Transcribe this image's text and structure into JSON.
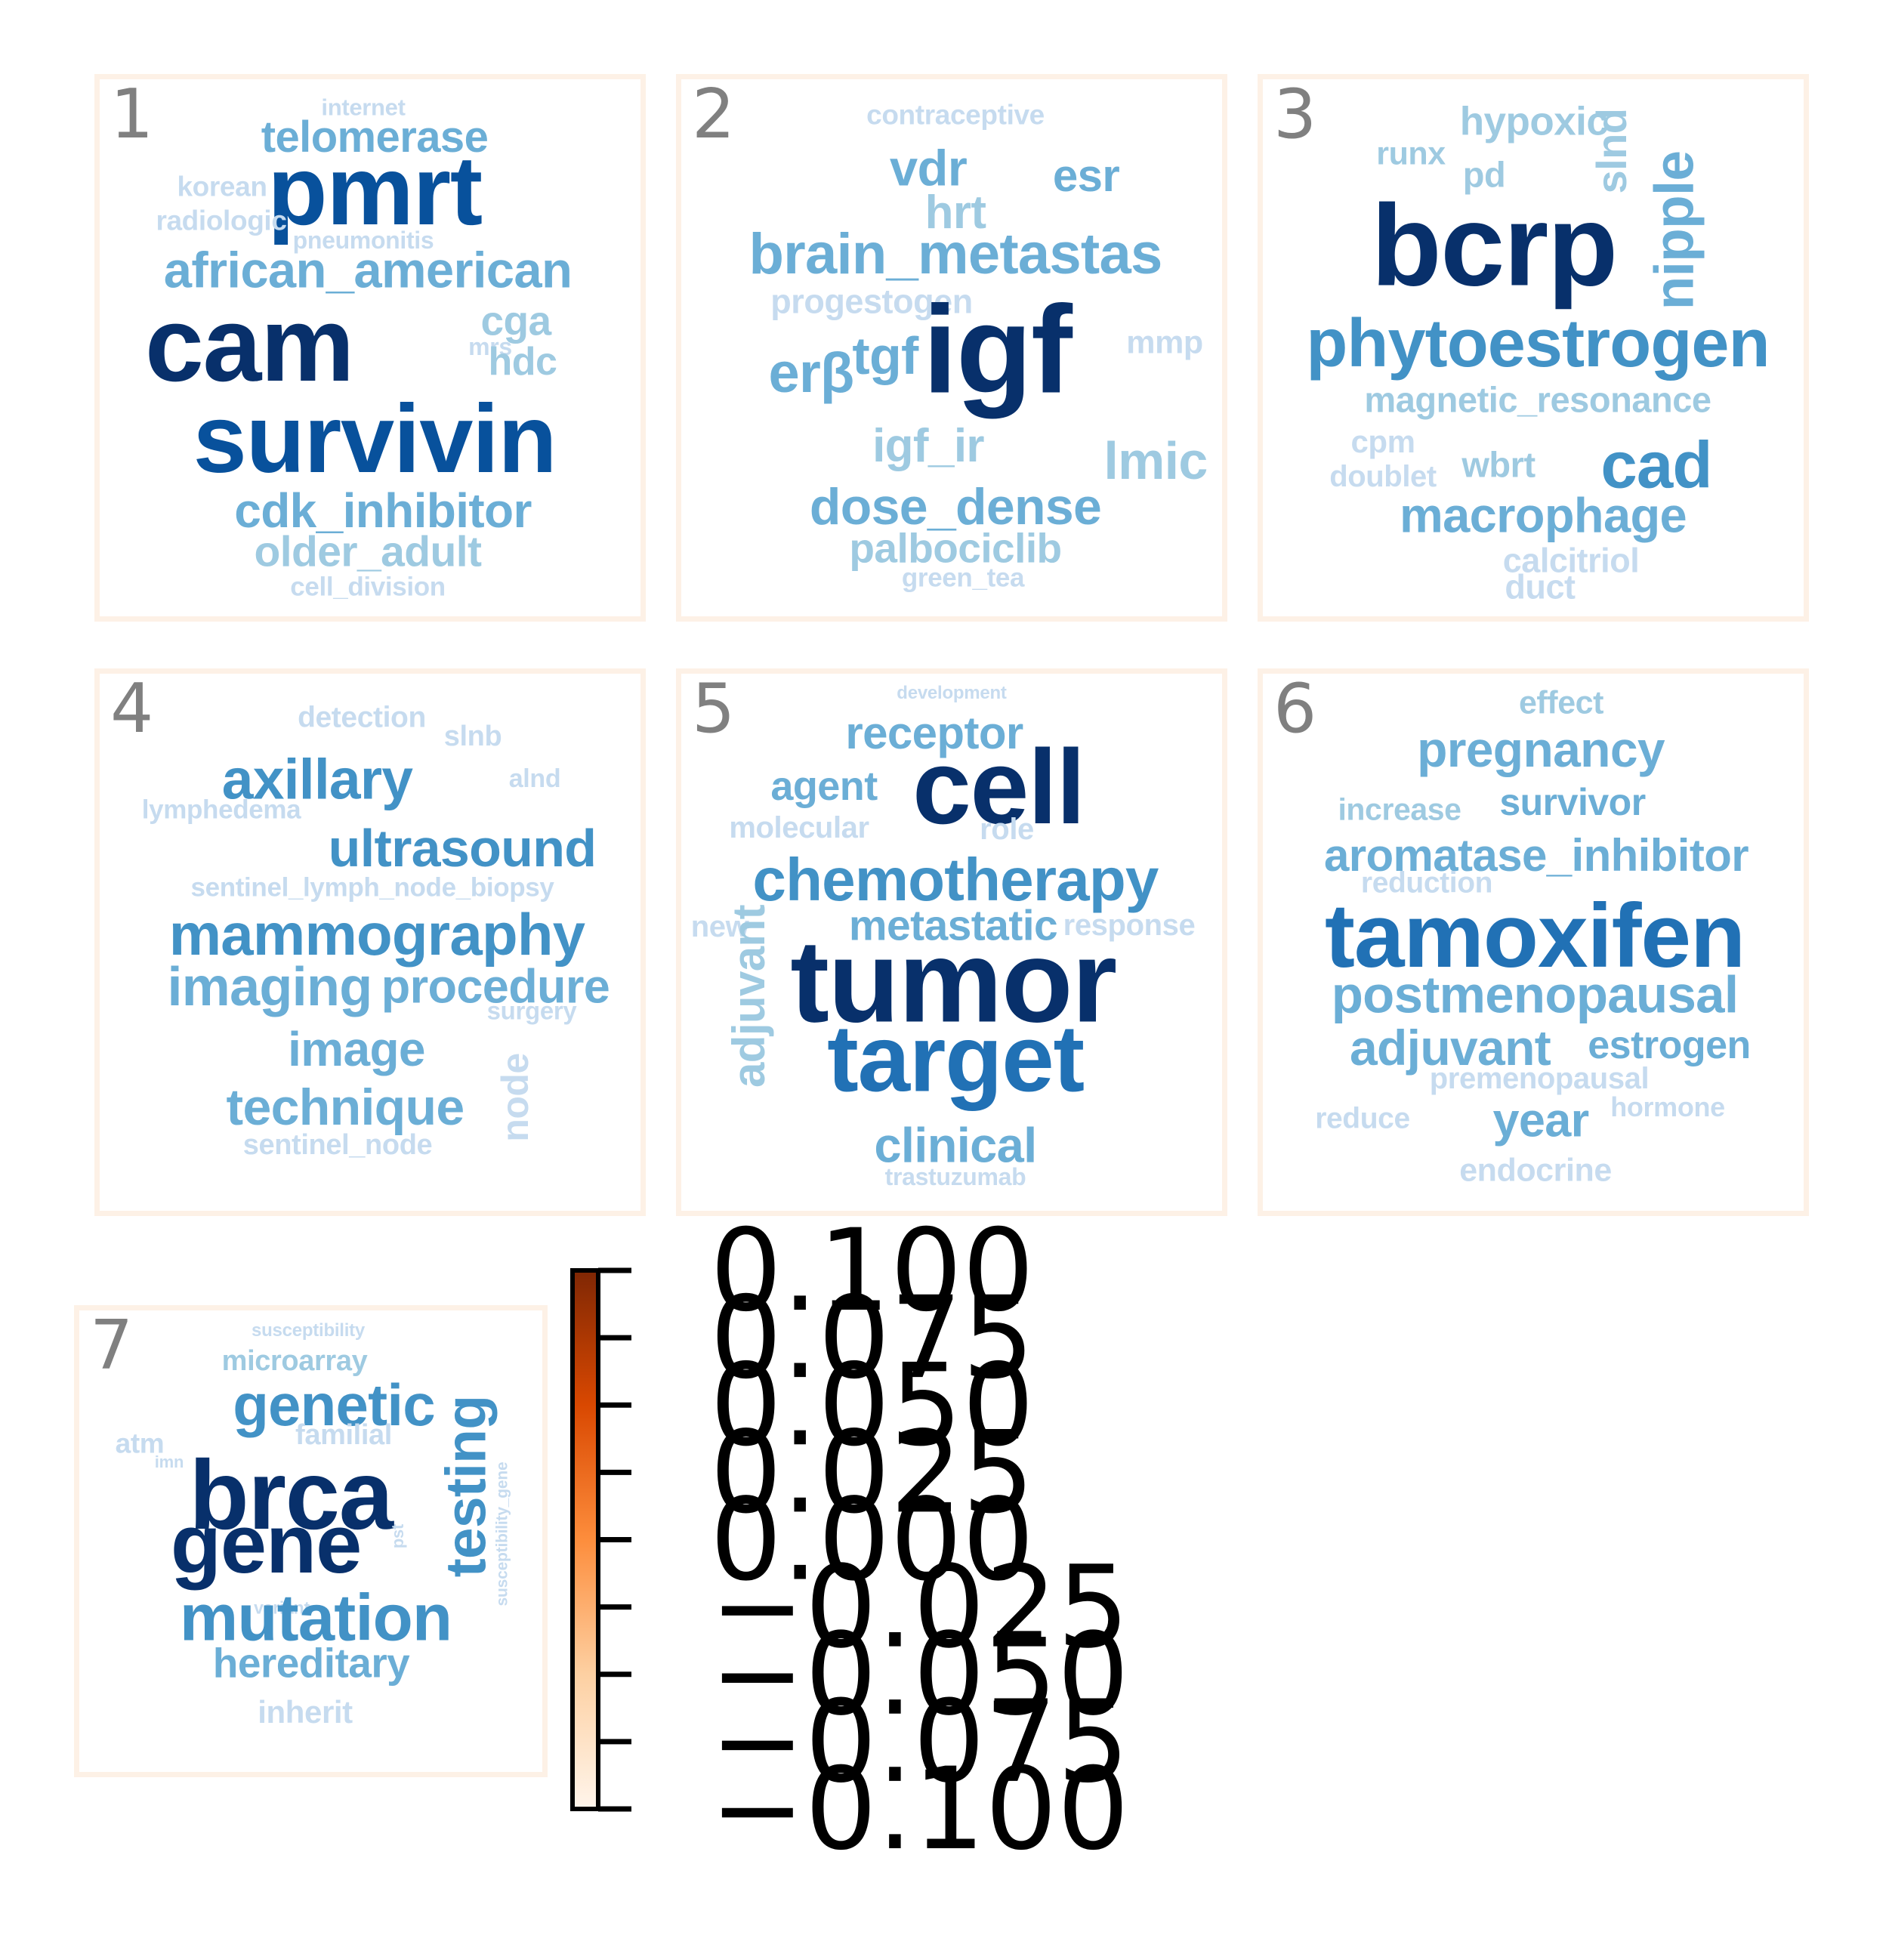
{
  "chart_data": {
    "type": "wordcloud",
    "panels": [
      {
        "number": "1",
        "words": [
          {
            "text": "internet",
            "weight": 0.15
          },
          {
            "text": "telomerase",
            "weight": 0.45
          },
          {
            "text": "korean",
            "weight": 0.2
          },
          {
            "text": "pmrt",
            "weight": 0.85
          },
          {
            "text": "radiologic",
            "weight": 0.2
          },
          {
            "text": "pneumonitis",
            "weight": 0.15
          },
          {
            "text": "african_american",
            "weight": 0.5
          },
          {
            "text": "cga",
            "weight": 0.3
          },
          {
            "text": "cam",
            "weight": 1.0
          },
          {
            "text": "mrs",
            "weight": 0.15
          },
          {
            "text": "hdc",
            "weight": 0.3
          },
          {
            "text": "survivin",
            "weight": 0.9
          },
          {
            "text": "cdk_inhibitor",
            "weight": 0.45
          },
          {
            "text": "older_adult",
            "weight": 0.35
          },
          {
            "text": "cell_division",
            "weight": 0.2
          }
        ]
      },
      {
        "number": "2",
        "words": [
          {
            "text": "contraceptive",
            "weight": 0.15
          },
          {
            "text": "vdr",
            "weight": 0.45
          },
          {
            "text": "esr",
            "weight": 0.4
          },
          {
            "text": "hrt",
            "weight": 0.35
          },
          {
            "text": "brain_metastas",
            "weight": 0.55
          },
          {
            "text": "progestogen",
            "weight": 0.25
          },
          {
            "text": "erβ",
            "weight": 0.45
          },
          {
            "text": "tgf",
            "weight": 0.45
          },
          {
            "text": "igf",
            "weight": 1.0
          },
          {
            "text": "mmp",
            "weight": 0.25
          },
          {
            "text": "igf_ir",
            "weight": 0.4
          },
          {
            "text": "lmic",
            "weight": 0.4
          },
          {
            "text": "dose_dense",
            "weight": 0.45
          },
          {
            "text": "palbociclib",
            "weight": 0.35
          },
          {
            "text": "green_tea",
            "weight": 0.15
          }
        ]
      },
      {
        "number": "3",
        "words": [
          {
            "text": "hypoxic",
            "weight": 0.35
          },
          {
            "text": "runx",
            "weight": 0.3
          },
          {
            "text": "pd",
            "weight": 0.3
          },
          {
            "text": "slnd",
            "weight": 0.3
          },
          {
            "text": "bcrp",
            "weight": 1.0
          },
          {
            "text": "nipple",
            "weight": 0.4
          },
          {
            "text": "phytoestrogen",
            "weight": 0.65
          },
          {
            "text": "magnetic_resonance",
            "weight": 0.3
          },
          {
            "text": "cpm",
            "weight": 0.25
          },
          {
            "text": "doublet",
            "weight": 0.25
          },
          {
            "text": "wbrt",
            "weight": 0.25
          },
          {
            "text": "cad",
            "weight": 0.6
          },
          {
            "text": "macrophage",
            "weight": 0.45
          },
          {
            "text": "calcitriol",
            "weight": 0.25
          },
          {
            "text": "duct",
            "weight": 0.25
          }
        ]
      },
      {
        "number": "4",
        "words": [
          {
            "text": "detection",
            "weight": 0.25
          },
          {
            "text": "slnb",
            "weight": 0.25
          },
          {
            "text": "axillary",
            "weight": 0.6
          },
          {
            "text": "alnd",
            "weight": 0.2
          },
          {
            "text": "lymphedema",
            "weight": 0.15
          },
          {
            "text": "ultrasound",
            "weight": 0.55
          },
          {
            "text": "sentinel_lymph_node_biopsy",
            "weight": 0.2
          },
          {
            "text": "mammography",
            "weight": 0.65
          },
          {
            "text": "imaging",
            "weight": 0.5
          },
          {
            "text": "procedure",
            "weight": 0.45
          },
          {
            "text": "surgery",
            "weight": 0.2
          },
          {
            "text": "image",
            "weight": 0.45
          },
          {
            "text": "node",
            "weight": 0.2
          },
          {
            "text": "technique",
            "weight": 0.45
          },
          {
            "text": "sentinel_node",
            "weight": 0.2
          }
        ]
      },
      {
        "number": "5",
        "words": [
          {
            "text": "development",
            "weight": 0.1
          },
          {
            "text": "receptor",
            "weight": 0.5
          },
          {
            "text": "agent",
            "weight": 0.45
          },
          {
            "text": "cell",
            "weight": 1.0
          },
          {
            "text": "molecular",
            "weight": 0.25
          },
          {
            "text": "role",
            "weight": 0.2
          },
          {
            "text": "chemotherapy",
            "weight": 0.65
          },
          {
            "text": "new",
            "weight": 0.2
          },
          {
            "text": "metastatic",
            "weight": 0.45
          },
          {
            "text": "response",
            "weight": 0.2
          },
          {
            "text": "adjuvant",
            "weight": 0.3
          },
          {
            "text": "tumor",
            "weight": 0.95
          },
          {
            "text": "target",
            "weight": 0.85
          },
          {
            "text": "clinical",
            "weight": 0.45
          },
          {
            "text": "trastuzumab",
            "weight": 0.15
          }
        ]
      },
      {
        "number": "6",
        "words": [
          {
            "text": "effect",
            "weight": 0.2
          },
          {
            "text": "pregnancy",
            "weight": 0.45
          },
          {
            "text": "increase",
            "weight": 0.2
          },
          {
            "text": "survivor",
            "weight": 0.4
          },
          {
            "text": "aromatase_inhibitor",
            "weight": 0.45
          },
          {
            "text": "reduction",
            "weight": 0.2
          },
          {
            "text": "tamoxifen",
            "weight": 0.9
          },
          {
            "text": "postmenopausal",
            "weight": 0.5
          },
          {
            "text": "adjuvant",
            "weight": 0.55
          },
          {
            "text": "estrogen",
            "weight": 0.4
          },
          {
            "text": "premenopausal",
            "weight": 0.2
          },
          {
            "text": "reduce",
            "weight": 0.2
          },
          {
            "text": "year",
            "weight": 0.45
          },
          {
            "text": "hormone",
            "weight": 0.2
          },
          {
            "text": "endocrine",
            "weight": 0.2
          }
        ]
      },
      {
        "number": "7",
        "words": [
          {
            "text": "susceptibility",
            "weight": 0.1
          },
          {
            "text": "microarray",
            "weight": 0.3
          },
          {
            "text": "genetic",
            "weight": 0.6
          },
          {
            "text": "atm",
            "weight": 0.25
          },
          {
            "text": "familial",
            "weight": 0.25
          },
          {
            "text": "imn",
            "weight": 0.1
          },
          {
            "text": "brca",
            "weight": 1.0
          },
          {
            "text": "testing",
            "weight": 0.6
          },
          {
            "text": "pst",
            "weight": 0.1
          },
          {
            "text": "susceptibility_gene",
            "weight": 0.1
          },
          {
            "text": "gene",
            "weight": 1.0
          },
          {
            "text": "variant",
            "weight": 0.1
          },
          {
            "text": "mutation",
            "weight": 0.7
          },
          {
            "text": "hereditary",
            "weight": 0.4
          },
          {
            "text": "inherit",
            "weight": 0.25
          }
        ]
      }
    ],
    "colorbar": {
      "colormap": "Oranges",
      "range": [
        -0.1,
        0.1
      ],
      "ticks": [
        0.1,
        0.075,
        0.05,
        0.025,
        0.0,
        -0.025,
        -0.05,
        -0.075,
        -0.1
      ],
      "tick_labels": [
        "0.100",
        "0.075",
        "0.050",
        "0.025",
        "0.000",
        "−0.025",
        "−0.050",
        "−0.075",
        "−0.100"
      ],
      "colors": [
        "#fff5eb",
        "#fdd0a2",
        "#fd8d3c",
        "#d94801",
        "#7f2704"
      ]
    },
    "word_colors": [
      "#c6dbef",
      "#9ecae1",
      "#6baed6",
      "#4292c6",
      "#2171b5",
      "#08519c",
      "#08306b"
    ],
    "border_color": "#fdf1e6"
  }
}
